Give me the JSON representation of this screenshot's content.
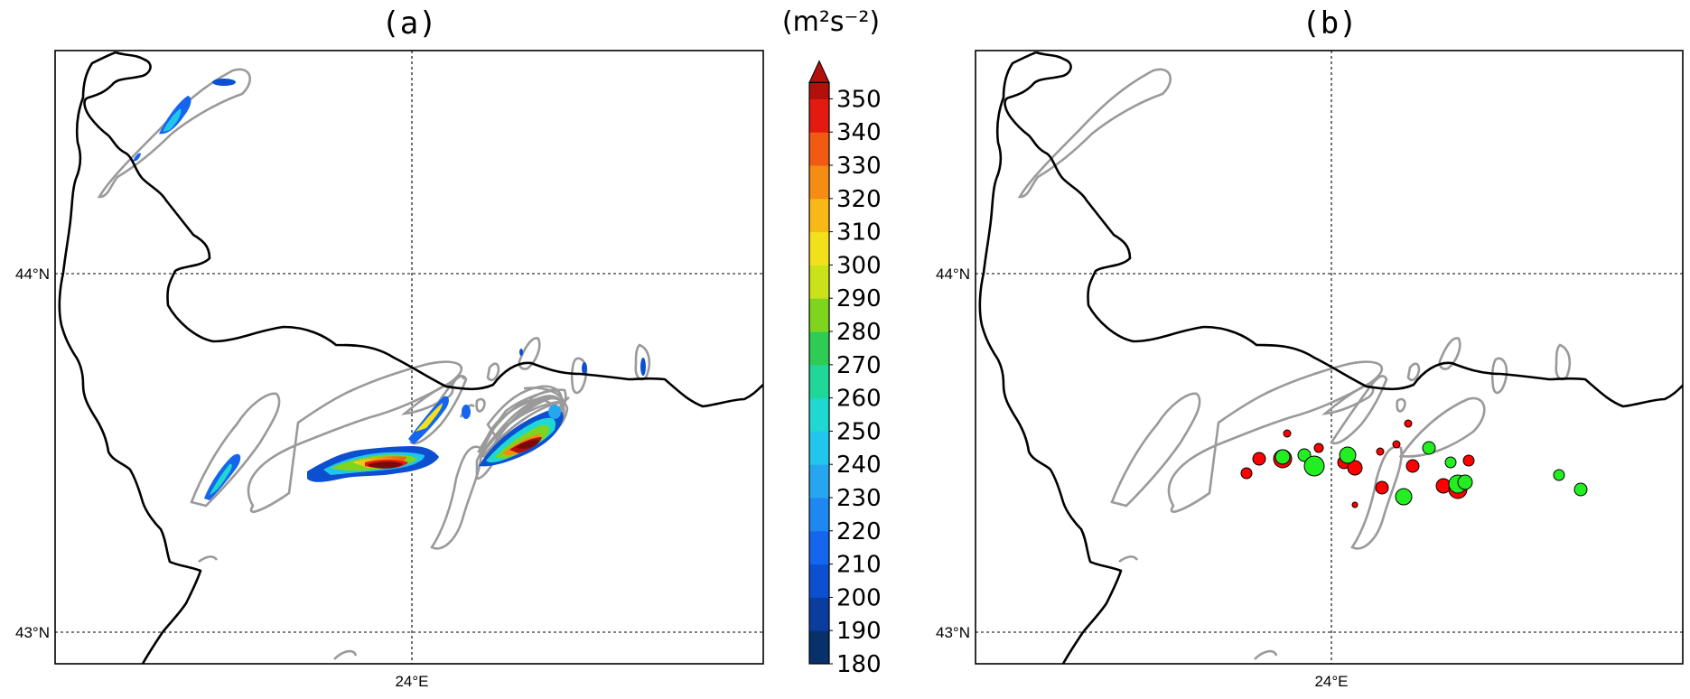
{
  "figure": {
    "panel_a": {
      "title": "(a)"
    },
    "panel_b": {
      "title": "(b)"
    },
    "lat_labels": [
      "44°N",
      "43°N"
    ],
    "lon_labels": [
      "24°E"
    ]
  },
  "colorbar": {
    "unit": "(m²s⁻²)",
    "ticks": [
      "180",
      "190",
      "200",
      "210",
      "220",
      "230",
      "240",
      "250",
      "260",
      "270",
      "280",
      "290",
      "300",
      "310",
      "320",
      "330",
      "340",
      "350"
    ],
    "colors": [
      "#08306b",
      "#0a3d9e",
      "#0d4fd1",
      "#1565ee",
      "#1e88f0",
      "#26a6ee",
      "#20c6ec",
      "#1fd9d0",
      "#20d79a",
      "#2ecc55",
      "#7fd41e",
      "#c9e21a",
      "#f3e01d",
      "#f8b817",
      "#f58c14",
      "#f05a12",
      "#e31a10",
      "#b3100c",
      "#7a0a08"
    ]
  },
  "panel_b_markers": {
    "red": "#ff0000",
    "green": "#22ee22"
  }
}
